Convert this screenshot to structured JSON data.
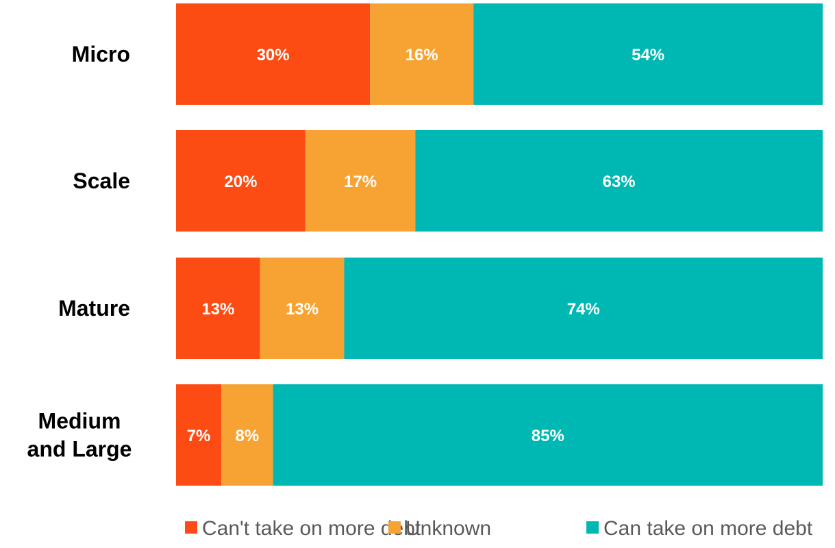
{
  "chart_data": {
    "type": "bar",
    "orientation": "horizontal",
    "stacked": true,
    "categories": [
      "Micro",
      "Scale",
      "Mature",
      "Medium and Large"
    ],
    "series": [
      {
        "name": "Can't take on more debt",
        "color": "#FC4C14",
        "values": [
          30,
          20,
          13,
          7
        ],
        "labels": [
          "30%",
          "20%",
          "13%",
          "7%"
        ]
      },
      {
        "name": "Unknown",
        "color": "#F7A333",
        "values": [
          16,
          17,
          13,
          8
        ],
        "labels": [
          "16%",
          "17%",
          "13%",
          "8%"
        ]
      },
      {
        "name": "Can take on more debt",
        "color": "#00B8B3",
        "values": [
          54,
          63,
          74,
          85
        ],
        "labels": [
          "54%",
          "63%",
          "74%",
          "85%"
        ]
      }
    ],
    "xlim": [
      0,
      100
    ],
    "grid": false,
    "legend_position": "bottom-right"
  }
}
